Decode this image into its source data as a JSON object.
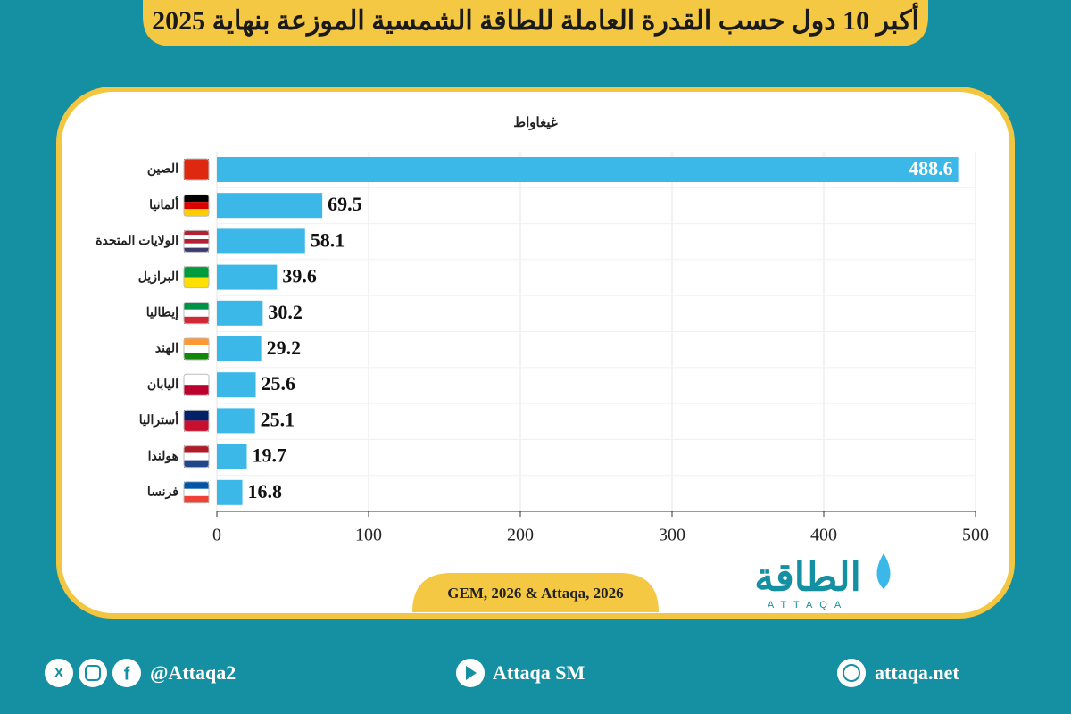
{
  "chart_data": {
    "type": "bar",
    "orientation": "horizontal",
    "title": "أكبر 10 دول حسب القدرة العاملة للطاقة الشمسية الموزعة بنهاية 2025",
    "xlabel": "غيغاواط",
    "categories": [
      "الصين",
      "ألمانيا",
      "الولايات المتحدة",
      "البرازيل",
      "إيطاليا",
      "الهند",
      "اليابان",
      "أستراليا",
      "هولندا",
      "فرنسا"
    ],
    "values": [
      488.6,
      69.5,
      58.1,
      39.6,
      30.2,
      29.2,
      25.6,
      25.1,
      19.7,
      16.8
    ],
    "color": "#3bb8e8",
    "xlim": [
      0,
      500
    ],
    "xticks": [
      0,
      100,
      200,
      300,
      400,
      500
    ],
    "grid": true,
    "source": "GEM, 2026 & Attaqa, 2026"
  },
  "logo": {
    "text": "الطاقة",
    "subtext": "ATTAQA"
  },
  "footer": {
    "social": "@Attaqa2",
    "youtube": "Attaqa SM",
    "website": "attaqa.net"
  }
}
